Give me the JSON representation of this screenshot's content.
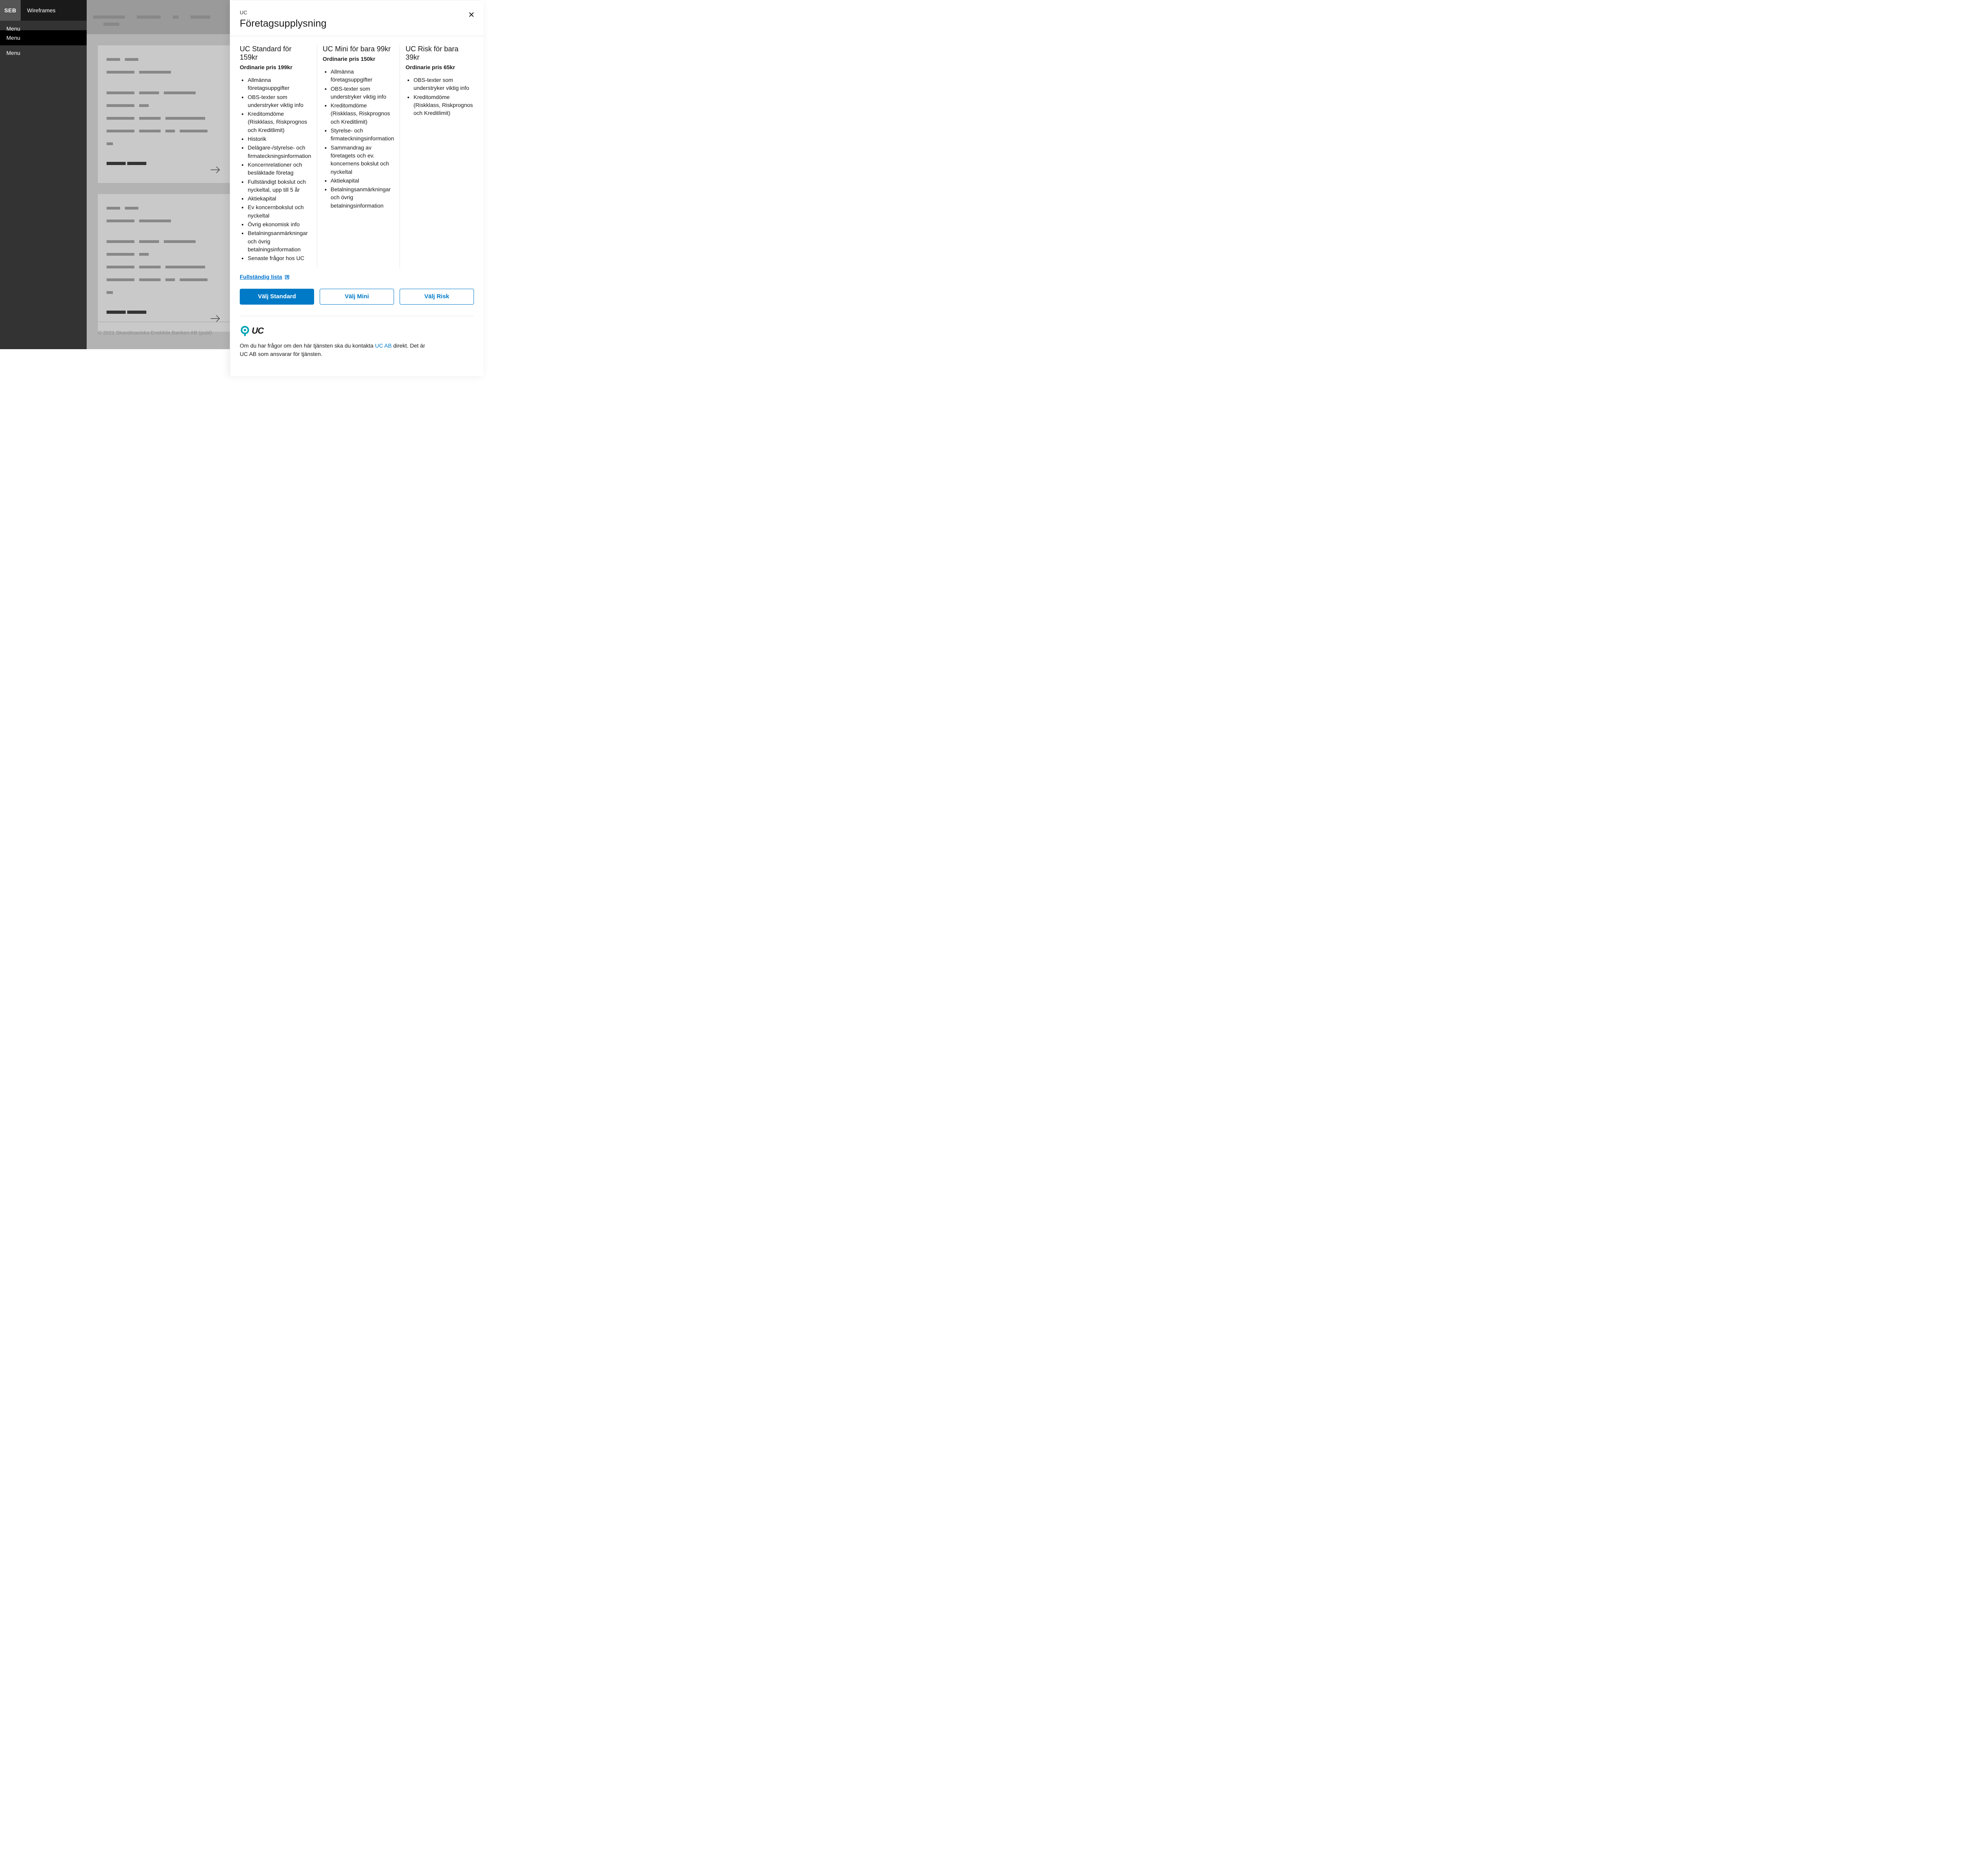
{
  "header": {
    "logo": "SEB",
    "title": "Wireframes"
  },
  "sidebar": {
    "items": [
      {
        "label": "Menu",
        "active": false
      },
      {
        "label": "Menu",
        "active": true
      },
      {
        "label": "Menu",
        "active": false
      }
    ]
  },
  "canvas": {
    "footer_text": "© 2021 Skandinaviska Enskilda Banken AB (publ)"
  },
  "modal": {
    "eyebrow": "UC",
    "title": "Företagsupplysning",
    "full_list_label": "Fullständig lista",
    "plans": [
      {
        "title": "UC Standard för 159kr",
        "subtitle": "Ordinarie pris 199kr",
        "button": "Välj Standard",
        "primary": true,
        "features": [
          "Allmänna företagsuppgifter",
          "OBS-texter som understryker viktig info",
          "Kreditomdöme (Riskklass, Riskprognos och Kreditlimit)",
          "Historik",
          "Delägare-/styrelse- och firmateckningsinformation",
          "Koncernrelationer och besläktade företag",
          "Fullständigt bokslut och nyckeltal, upp till 5 år",
          "Aktiekapital",
          "Ev koncernbokslut och nyckeltal",
          "Övrig ekonomisk info",
          "Betalningsanmärkningar och övrig betalningsinformation",
          "Senaste frågor hos UC"
        ]
      },
      {
        "title": "UC Mini för bara 99kr",
        "subtitle": "Ordinarie pris 150kr",
        "button": "Välj Mini",
        "primary": false,
        "features": [
          "Allmänna företagsuppgifter",
          "OBS-texter som understryker viktig info",
          "Kreditomdöme (Riskklass, Riskprognos och Kreditlimit)",
          "Styrelse- och firmateckningsinformation",
          "Sammandrag av företagets och ev. koncernens bokslut och nyckeltal",
          "Aktiekapital",
          "Betalningsanmärkningar och övrig betalningsinformation"
        ]
      },
      {
        "title": "UC Risk för bara 39kr",
        "subtitle": "Ordinarie pris 65kr",
        "button": "Välj Risk",
        "primary": false,
        "features": [
          "OBS-texter som understryker viktig info",
          "Kreditomdöme (Riskklass, Riskprognos och Kreditlimit)"
        ]
      }
    ],
    "provider": {
      "logo_text": "UC",
      "text_before": "Om du har frågor om den här tjänsten ska du kontakta ",
      "link_text": "UC AB",
      "text_after": " direkt. Det är UC AB som ansvarar för tjänsten."
    }
  },
  "colors": {
    "brand_blue": "#007ac7",
    "sidebar_bg": "#333333",
    "header_bg": "#1a1a1a",
    "canvas_bg": "#b3b3b3"
  }
}
